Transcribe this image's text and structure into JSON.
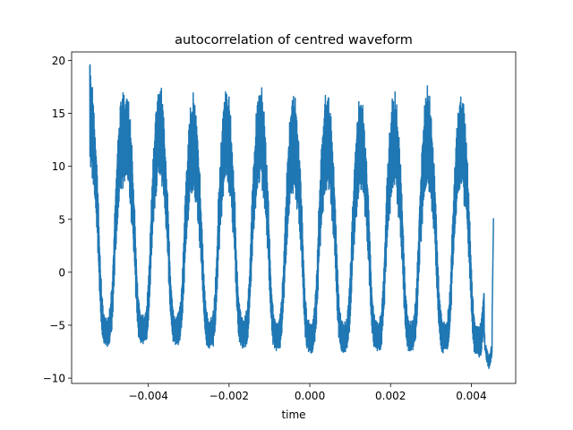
{
  "chart_data": {
    "type": "line",
    "title": "autocorrelation of centred waveform",
    "xlabel": "time",
    "ylabel": "",
    "xlim": [
      -0.0059,
      0.0051
    ],
    "ylim": [
      -10.5,
      20.8
    ],
    "xticks": [
      -0.004,
      -0.002,
      0.0,
      0.002,
      0.004
    ],
    "xtick_labels": [
      "−0.004",
      "−0.002",
      "0.000",
      "0.002",
      "0.004"
    ],
    "yticks": [
      -10,
      -5,
      0,
      5,
      10,
      15,
      20
    ],
    "ytick_labels": [
      "−10",
      "−5",
      "0",
      "5",
      "10",
      "15",
      "20"
    ],
    "grid": false,
    "legend": "none",
    "x_range": [
      -0.00545,
      0.00455
    ],
    "period": 0.00083,
    "peak_times": [
      -0.00545,
      -0.00455,
      -0.00372,
      -0.00289,
      -0.00206,
      -0.00123,
      -0.0004,
      0.00043,
      0.00126,
      0.00209,
      0.00292,
      0.00375
    ],
    "peak_values": [
      19.5,
      17.2,
      17.8,
      16.0,
      17.3,
      17.6,
      16.4,
      16.8,
      15.9,
      16.4,
      17.0,
      16.6
    ],
    "trough_values": [
      -7.5,
      -7.3,
      -7.3,
      -7.7,
      -7.6,
      -7.9,
      -8.2,
      -8.3,
      -8.1,
      -8.0,
      -8.2,
      -8.8
    ],
    "end_value": 5.1,
    "series": [
      {
        "color": "#1f77b4",
        "linewidth": 1.5
      }
    ]
  }
}
